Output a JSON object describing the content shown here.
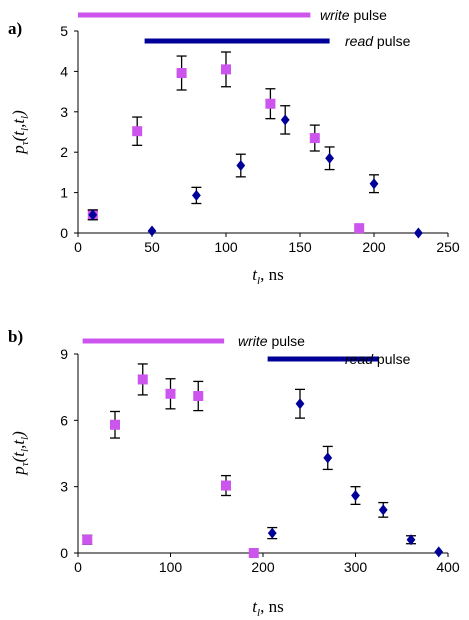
{
  "chart_data": [
    {
      "type": "scatter",
      "panel_label": "a)",
      "xlabel": {
        "symbol": "t",
        "sub": "l",
        "unit": ", ns"
      },
      "ylabel": {
        "symbol": "p",
        "sub": "τ",
        "args_open": "(t",
        "arg_sub": "l",
        "args_mid": ",t",
        "args_close": ")"
      },
      "xlim": [
        0,
        250
      ],
      "ylim": [
        0,
        5
      ],
      "xticks": [
        "0",
        "50",
        "100",
        "150",
        "200",
        "250"
      ],
      "yticks": [
        "0",
        "1",
        "2",
        "3",
        "4",
        "5"
      ],
      "grid": false,
      "pulses": [
        {
          "label_italic": "write",
          "label_rest": " pulse",
          "color": "#cc55ee",
          "x": [
            0,
            157
          ]
        },
        {
          "label_italic": "read",
          "label_rest": " pulse",
          "color": "#000099",
          "x": [
            45,
            170
          ]
        }
      ],
      "series": [
        {
          "marker": "square",
          "color": "#cc55ee",
          "points": [
            {
              "x": 10,
              "y": 0.45,
              "err": 0.12
            },
            {
              "x": 40,
              "y": 2.52,
              "err": 0.35
            },
            {
              "x": 70,
              "y": 3.96,
              "err": 0.42
            },
            {
              "x": 100,
              "y": 4.05,
              "err": 0.43
            },
            {
              "x": 130,
              "y": 3.2,
              "err": 0.37
            },
            {
              "x": 160,
              "y": 2.35,
              "err": 0.32
            },
            {
              "x": 190,
              "y": 0.12,
              "err": 0
            }
          ]
        },
        {
          "marker": "diamond",
          "color": "#000099",
          "points": [
            {
              "x": 10,
              "y": 0.45,
              "err": 0.12
            },
            {
              "x": 50,
              "y": 0.05,
              "err": 0
            },
            {
              "x": 80,
              "y": 0.93,
              "err": 0.2
            },
            {
              "x": 110,
              "y": 1.67,
              "err": 0.28
            },
            {
              "x": 140,
              "y": 2.8,
              "err": 0.35
            },
            {
              "x": 170,
              "y": 1.85,
              "err": 0.28
            },
            {
              "x": 200,
              "y": 1.22,
              "err": 0.22
            },
            {
              "x": 230,
              "y": 0.0,
              "err": 0
            }
          ]
        }
      ]
    },
    {
      "type": "scatter",
      "panel_label": "b)",
      "xlabel": {
        "symbol": "t",
        "sub": "l",
        "unit": ", ns"
      },
      "ylabel": {
        "symbol": "p",
        "sub": "τ",
        "args_open": "(t",
        "arg_sub": "l",
        "args_mid": ",t",
        "args_close": ")"
      },
      "xlim": [
        0,
        400
      ],
      "ylim": [
        0,
        9
      ],
      "xticks": [
        "0",
        "100",
        "200",
        "300",
        "400"
      ],
      "yticks": [
        "0",
        "3",
        "6",
        "9"
      ],
      "grid": false,
      "pulses": [
        {
          "label_italic": "write",
          "label_rest": " pulse",
          "color": "#cc55ee",
          "x": [
            5,
            158
          ]
        },
        {
          "label_italic": "read",
          "label_rest": " pulse",
          "color": "#000099",
          "x": [
            205,
            325
          ]
        }
      ],
      "series": [
        {
          "marker": "square",
          "color": "#cc55ee",
          "points": [
            {
              "x": 10,
              "y": 0.6,
              "err": 0.2
            },
            {
              "x": 40,
              "y": 5.8,
              "err": 0.6
            },
            {
              "x": 70,
              "y": 7.85,
              "err": 0.7
            },
            {
              "x": 100,
              "y": 7.2,
              "err": 0.68
            },
            {
              "x": 130,
              "y": 7.1,
              "err": 0.66
            },
            {
              "x": 160,
              "y": 3.05,
              "err": 0.45
            },
            {
              "x": 190,
              "y": 0.0,
              "err": 0
            }
          ]
        },
        {
          "marker": "diamond",
          "color": "#000099",
          "points": [
            {
              "x": 210,
              "y": 0.9,
              "err": 0.25
            },
            {
              "x": 240,
              "y": 6.75,
              "err": 0.65
            },
            {
              "x": 270,
              "y": 4.3,
              "err": 0.52
            },
            {
              "x": 300,
              "y": 2.6,
              "err": 0.4
            },
            {
              "x": 330,
              "y": 1.95,
              "err": 0.33
            },
            {
              "x": 360,
              "y": 0.6,
              "err": 0.18
            },
            {
              "x": 390,
              "y": 0.05,
              "err": 0
            }
          ]
        }
      ]
    }
  ]
}
